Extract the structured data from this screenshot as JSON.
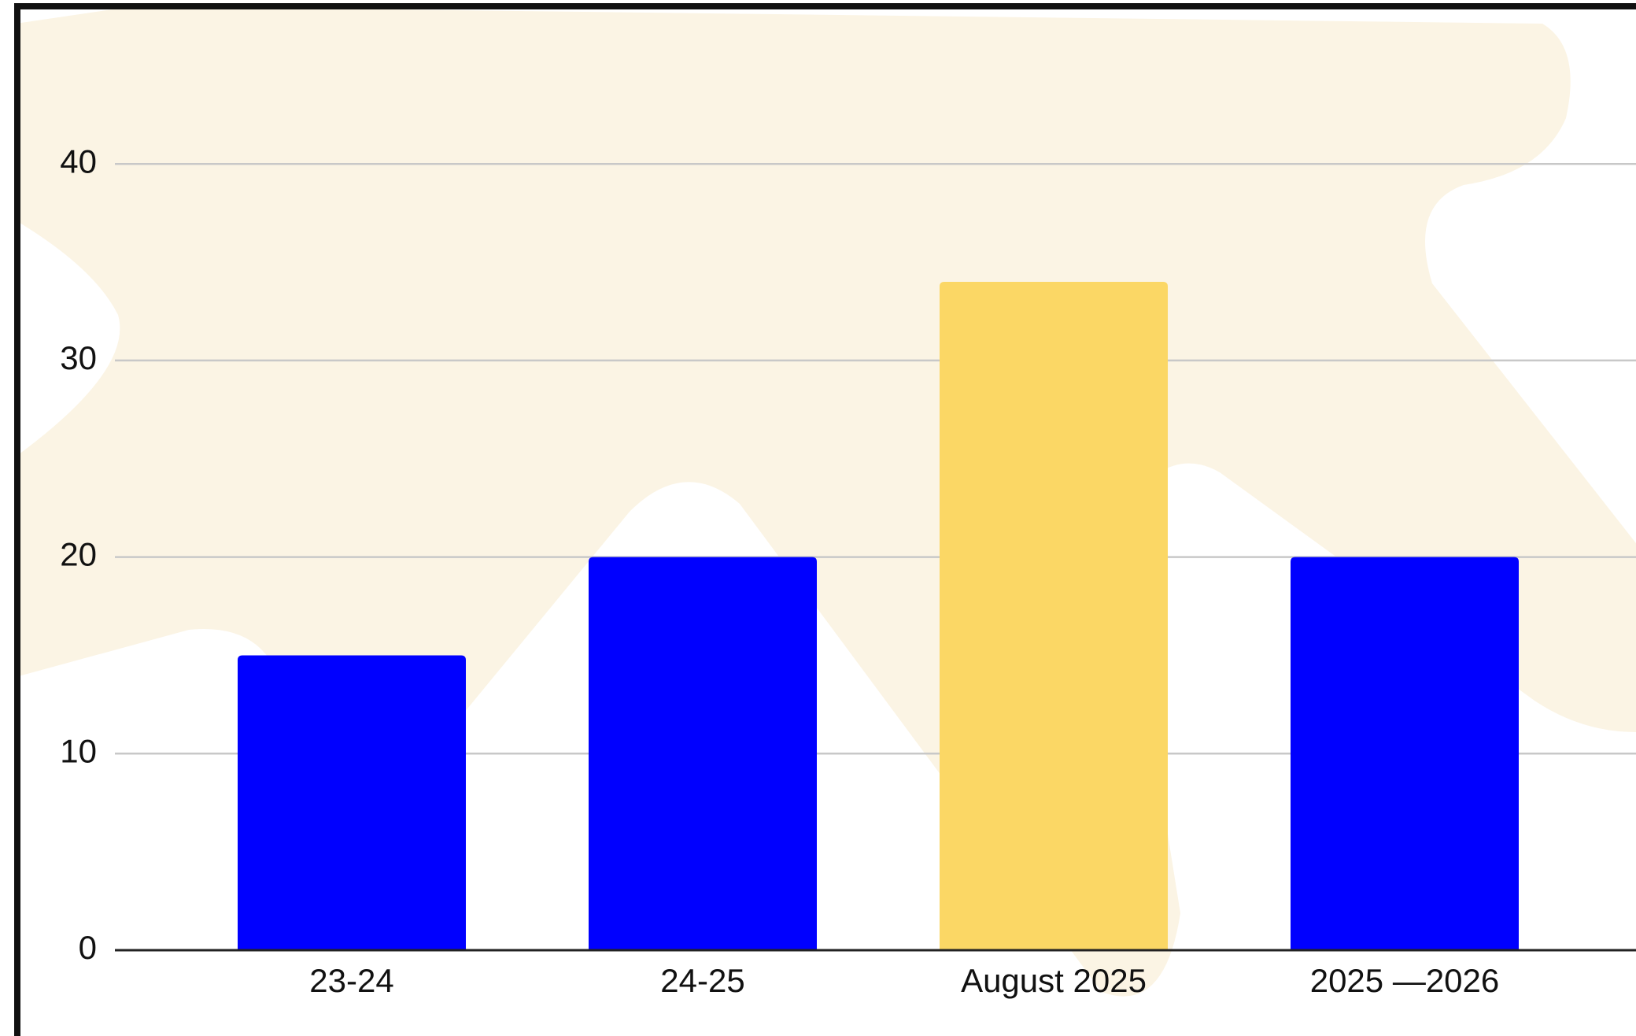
{
  "chart_data": {
    "type": "bar",
    "categories": [
      "23-24",
      "24-25",
      "August 2025",
      "2025 —2026"
    ],
    "values": [
      15,
      20,
      34,
      20
    ],
    "colors": [
      "#0000ff",
      "#0000ff",
      "#fbd765",
      "#0000ff"
    ],
    "ylim": [
      0,
      48
    ],
    "yticks": [
      0,
      10,
      20,
      30,
      40
    ],
    "grid": true
  }
}
